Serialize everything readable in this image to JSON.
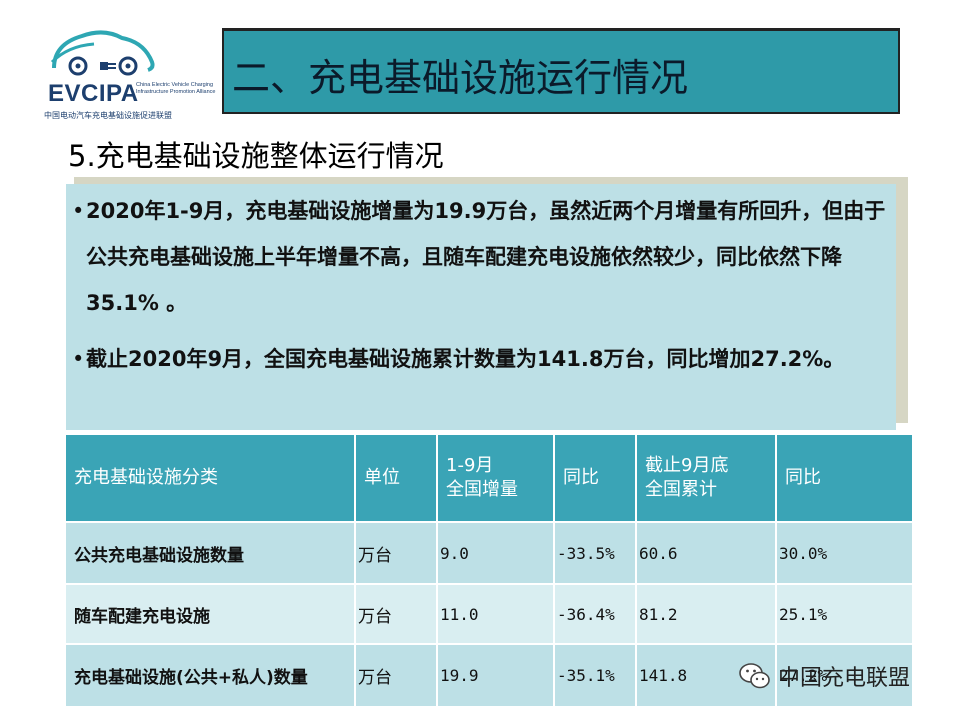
{
  "logo": {
    "acronym": "EVCIPA",
    "subtitle_en": "China Electric Vehicle Charging Infrastructure Promotion Alliance",
    "name_cn": "中国电动汽车充电基础设施促进联盟",
    "icon": "car-plug-icon",
    "color": "#1d3f6e",
    "accent": "#2ea7b3"
  },
  "title": "二、充电基础设施运行情况",
  "subtitle": "5.充电基础设施整体运行情况",
  "bullets": [
    "2020年1-9月，充电基础设施增量为19.9万台，虽然近两个月增量有所回升，但由于公共充电基础设施上半年增量不高，且随车配建充电设施依然较少，同比依然下降35.1% 。",
    "截止2020年9月，全国充电基础设施累计数量为141.8万台，同比增加27.2%。"
  ],
  "table": {
    "headers": [
      "充电基础设施分类",
      "单位",
      "1-9月\n全国增量",
      "同比",
      "截止9月底\n全国累计",
      "同比"
    ],
    "rows": [
      [
        "公共充电基础设施数量",
        "万台",
        "9.0",
        "-33.5%",
        "60.6",
        "30.0%"
      ],
      [
        "随车配建充电设施",
        "万台",
        "11.0",
        "-36.4%",
        "81.2",
        "25.1%"
      ],
      [
        "充电基础设施(公共+私人)数量",
        "万台",
        "19.9",
        "-35.1%",
        "141.8",
        "27.2%"
      ]
    ]
  },
  "watermark": {
    "text": "中国充电联盟",
    "icon": "wechat-icon"
  },
  "colors": {
    "title_bar": "#2e9aa8",
    "table_header": "#3aa4b6",
    "row_dark": "#bde0e6",
    "row_light": "#d9eef1"
  }
}
